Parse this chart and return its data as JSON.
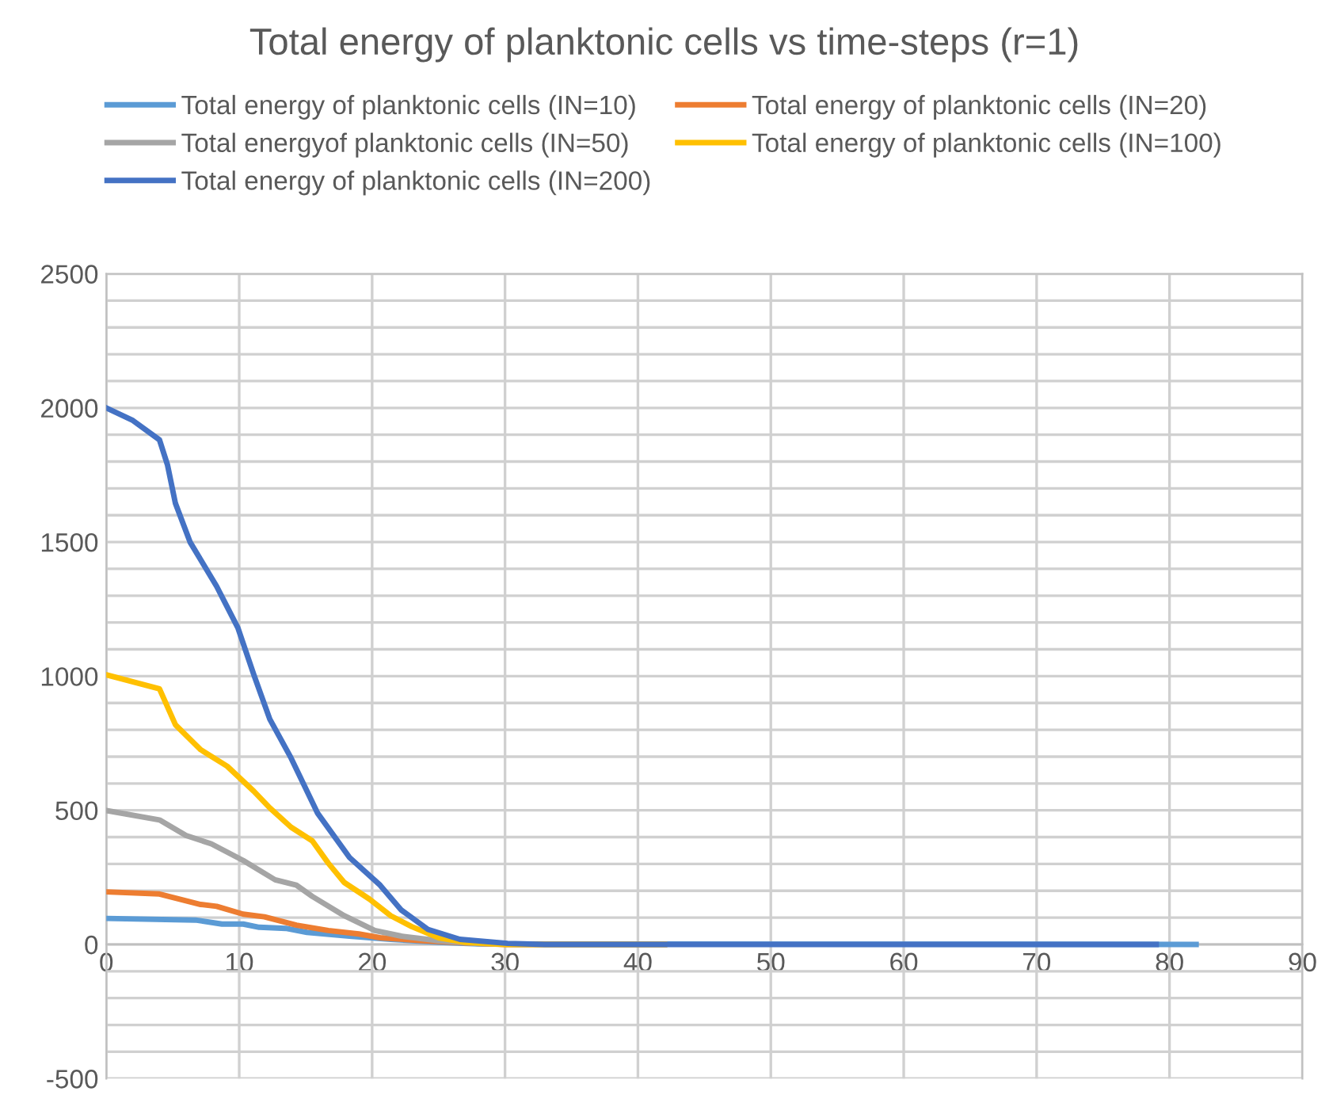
{
  "chart_data": {
    "type": "line",
    "title": "Total energy of planktonic cells vs time-steps (r=1)",
    "series": [
      {
        "name": "Total energy of planktonic cells (IN=10)",
        "color": "#5b9bd5",
        "x": [
          0,
          6.7,
          8.7,
          10.3,
          11.5,
          13.5,
          15.1,
          18.3,
          21.4,
          25,
          28,
          82
        ],
        "values": [
          97,
          91,
          76,
          76,
          64,
          60,
          45,
          31,
          19,
          8,
          2,
          0
        ]
      },
      {
        "name": "Total energy of planktonic cells (IN=20)",
        "color": "#ed7d31",
        "x": [
          0,
          4,
          7.1,
          8.3,
          10.3,
          11.9,
          14.3,
          16.7,
          19,
          20.6,
          23.8,
          27,
          30,
          42
        ],
        "values": [
          196,
          188,
          149,
          142,
          113,
          103,
          72,
          52,
          39,
          25,
          14,
          6,
          0,
          0
        ]
      },
      {
        "name": "Total energyof planktonic cells (IN=50)",
        "color": "#a5a5a5",
        "x": [
          0,
          4,
          6,
          7.9,
          10.3,
          12.7,
          14.3,
          15.5,
          17.9,
          20.2,
          22.2,
          25,
          27.8,
          31,
          42
        ],
        "values": [
          499,
          464,
          406,
          375,
          313,
          241,
          221,
          179,
          107,
          52,
          31,
          14,
          4,
          0,
          0
        ]
      },
      {
        "name": "Total energy of planktonic cells (IN=100)",
        "color": "#ffc000",
        "x": [
          0,
          4,
          5.2,
          7.1,
          9.1,
          11.1,
          12.3,
          13.9,
          15.5,
          16.7,
          17.9,
          19.8,
          21.4,
          23,
          25,
          27,
          30,
          42
        ],
        "values": [
          1005,
          953,
          819,
          726,
          664,
          571,
          509,
          437,
          386,
          303,
          231,
          169,
          107,
          66,
          25,
          8,
          0,
          0
        ]
      },
      {
        "name": "Total energy of planktonic cells (IN=200)",
        "color": "#4472c4",
        "x": [
          0,
          2,
          4,
          4.6,
          5.2,
          6.3,
          8.3,
          9.9,
          11.1,
          12.3,
          13.9,
          15.9,
          18.3,
          20.6,
          22.2,
          24.2,
          26.6,
          30.2,
          33,
          79
        ],
        "values": [
          2000,
          1953,
          1881,
          1788,
          1644,
          1500,
          1335,
          1180,
          1005,
          840,
          695,
          489,
          324,
          221,
          128,
          56,
          19,
          4,
          0,
          0
        ]
      }
    ],
    "xlim": [
      0,
      90
    ],
    "xticks": [
      0,
      10,
      20,
      30,
      40,
      50,
      60,
      70,
      80,
      90
    ],
    "ylim": [
      -500,
      2500
    ],
    "yticks": [
      -500,
      {
        "value": -400,
        "label": null
      },
      {
        "value": -300,
        "label": null
      },
      {
        "value": -200,
        "label": null
      },
      {
        "value": -100,
        "label": null
      },
      0,
      {
        "value": 100,
        "label": null
      },
      {
        "value": 200,
        "label": null
      },
      {
        "value": 300,
        "label": null
      },
      {
        "value": 400,
        "label": null
      },
      500,
      {
        "value": 600,
        "label": null
      },
      {
        "value": 700,
        "label": null
      },
      {
        "value": 800,
        "label": null
      },
      {
        "value": 900,
        "label": null
      },
      1000,
      {
        "value": 1100,
        "label": null
      },
      {
        "value": 1200,
        "label": null
      },
      {
        "value": 1300,
        "label": null
      },
      {
        "value": 1400,
        "label": null
      },
      1500,
      {
        "value": 1600,
        "label": null
      },
      {
        "value": 1700,
        "label": null
      },
      {
        "value": 1800,
        "label": null
      },
      {
        "value": 1900,
        "label": null
      },
      2000,
      {
        "value": 2100,
        "label": null
      },
      {
        "value": 2200,
        "label": null
      },
      {
        "value": 2300,
        "label": null
      },
      {
        "value": 2400,
        "label": null
      },
      2500
    ],
    "grid": true,
    "legend": "top",
    "marker": "none",
    "line_style": "solid"
  }
}
